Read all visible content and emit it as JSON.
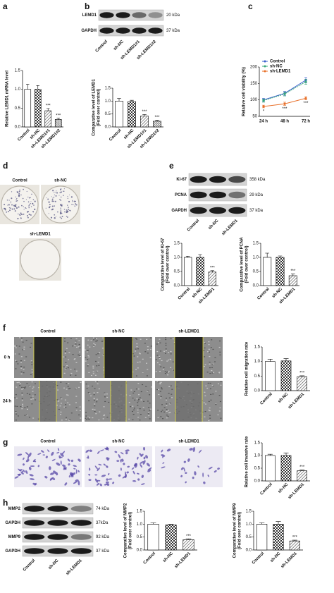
{
  "figure": {
    "panel_labels": [
      "a",
      "b",
      "c",
      "d",
      "e",
      "f",
      "g",
      "h"
    ],
    "blots": [
      {
        "lanes": [
          "Control",
          "sh-NC",
          "sh-LEMD1#1",
          "sh-LEMD1#2"
        ],
        "bands": [
          {
            "name": "LEMD1",
            "size": "20 kDa"
          },
          {
            "name": "GAPDH",
            "size": "37 kDa"
          }
        ]
      },
      {
        "lanes": [
          "Control",
          "sh-NC",
          "sh-LEMD1"
        ],
        "bands": [
          {
            "name": "Ki-67",
            "size": "358 kDa"
          },
          {
            "name": "PCNA",
            "size": "29 kDa"
          },
          {
            "name": "GAPDH",
            "size": "37 kDa"
          }
        ]
      },
      {
        "lanes": [
          "Control",
          "sh-NC",
          "sh-LEMD1"
        ],
        "bands": [
          {
            "name": "MMP2",
            "size": "74 kDa"
          },
          {
            "name": "GAPDH",
            "size": "37kDa"
          },
          {
            "name": "MMP9",
            "size": "92 kDa"
          },
          {
            "name": "GAPDH",
            "size": "37 kDa"
          }
        ]
      }
    ],
    "colony": {
      "labels": [
        "Control",
        "sh-NC",
        "sh-LEMD1"
      ]
    },
    "wound": {
      "columns": [
        "Control",
        "sh-NC",
        "sh-LEMD1"
      ],
      "rows": [
        "0 h",
        "24 h"
      ]
    },
    "invasion": {
      "labels": [
        "Control",
        "sh-NC",
        "sh-LEMD1"
      ]
    }
  },
  "chart_data": [
    {
      "type": "bar",
      "ylabel": "Relative LEMD1 mRNA level",
      "categories": [
        "Control",
        "sh-NC",
        "sh-LEMD1#1",
        "sh-LEMD1#2"
      ],
      "values": [
        1.0,
        1.0,
        0.43,
        0.2
      ],
      "errors": [
        0.13,
        0.1,
        0.06,
        0.03
      ],
      "significance": [
        null,
        null,
        "***",
        "***"
      ],
      "fills": [
        "white",
        "checker",
        "hatch",
        "dense"
      ],
      "ylim": [
        0,
        1.5
      ],
      "yticks": [
        {
          "value": 0,
          "label": "0.0"
        },
        0.5,
        {
          "value": 1,
          "label": "1.0"
        },
        1.5
      ]
    },
    {
      "type": "bar",
      "ylabel": "Comparative level of LEMD1",
      "ylabel2": "(Fold over control)",
      "categories": [
        "Control",
        "sh-NC",
        "sh-LEMD1#1",
        "sh-LEMD1#2"
      ],
      "values": [
        1.0,
        0.98,
        0.42,
        0.22
      ],
      "errors": [
        0.1,
        0.05,
        0.06,
        0.04
      ],
      "significance": [
        null,
        null,
        "***",
        "***"
      ],
      "fills": [
        "white",
        "checker",
        "hatch",
        "dense"
      ],
      "ylim": [
        0,
        1.5
      ],
      "yticks": [
        {
          "value": 0,
          "label": "0.0"
        },
        0.5,
        {
          "value": 1,
          "label": "1.0"
        },
        1.5
      ]
    },
    {
      "type": "line",
      "ylabel": "Relative cell viability (%)",
      "legend": "upper left",
      "categories": [
        "24 h",
        "48 h",
        "72 h"
      ],
      "series": [
        {
          "name": "Control",
          "color": "#3a5fcd",
          "values": [
            100,
            120,
            160
          ],
          "errors": [
            5,
            6,
            8
          ]
        },
        {
          "name": "sh-NC",
          "color": "#3aa87a",
          "values": [
            98,
            118,
            155
          ],
          "errors": [
            5,
            6,
            8
          ]
        },
        {
          "name": "sh-LEMD1",
          "color": "#e8702a",
          "values": [
            80,
            88,
            105
          ],
          "errors": [
            4,
            5,
            5
          ],
          "significance": [
            "*",
            "***",
            "***"
          ]
        }
      ],
      "ylim": [
        50,
        200
      ],
      "yticks": [
        50,
        100,
        150,
        200
      ]
    },
    {
      "type": "bar",
      "ylabel": "Comparative level of Ki-67",
      "ylabel2": "(Fold over control)",
      "categories": [
        "Control",
        "sh-NC",
        "sh-LEMD1"
      ],
      "values": [
        1.0,
        1.0,
        0.48
      ],
      "errors": [
        0.04,
        0.1,
        0.05
      ],
      "significance": [
        null,
        null,
        "***"
      ],
      "fills": [
        "white",
        "checker",
        "hatch"
      ],
      "ylim": [
        0,
        1.5
      ],
      "yticks": [
        {
          "value": 0,
          "label": "0.0"
        },
        0.5,
        {
          "value": 1,
          "label": "1.0"
        },
        1.5
      ]
    },
    {
      "type": "bar",
      "ylabel": "Comparative level of PCNA",
      "ylabel2": "(Fold over control)",
      "categories": [
        "Control",
        "sh-NC",
        "sh-LEMD1"
      ],
      "values": [
        1.0,
        1.0,
        0.35
      ],
      "errors": [
        0.15,
        0.05,
        0.06
      ],
      "significance": [
        null,
        null,
        "***"
      ],
      "fills": [
        "white",
        "checker",
        "hatch"
      ],
      "ylim": [
        0,
        1.5
      ],
      "yticks": [
        {
          "value": 0,
          "label": "0.0"
        },
        0.5,
        {
          "value": 1,
          "label": "1.0"
        },
        1.5
      ]
    },
    {
      "type": "bar",
      "ylabel": "Relative cell migration rate",
      "categories": [
        "Control",
        "sh-NC",
        "sh-LEMD1"
      ],
      "values": [
        1.0,
        1.02,
        0.48
      ],
      "errors": [
        0.08,
        0.08,
        0.03
      ],
      "significance": [
        null,
        null,
        "***"
      ],
      "fills": [
        "white",
        "checker",
        "hatch"
      ],
      "ylim": [
        0,
        1.5
      ],
      "yticks": [
        {
          "value": 0,
          "label": "0.0"
        },
        0.5,
        {
          "value": 1,
          "label": "1.0"
        },
        1.5
      ]
    },
    {
      "type": "bar",
      "ylabel": "Relative cell invasive rate",
      "categories": [
        "Control",
        "sh-NC",
        "sh-LEMD1"
      ],
      "values": [
        1.0,
        1.0,
        0.4
      ],
      "errors": [
        0.05,
        0.1,
        0.03
      ],
      "significance": [
        null,
        null,
        "***"
      ],
      "fills": [
        "white",
        "checker",
        "hatch"
      ],
      "ylim": [
        0,
        1.5
      ],
      "yticks": [
        {
          "value": 0,
          "label": "0.0"
        },
        0.5,
        {
          "value": 1,
          "label": "1.0"
        },
        1.5
      ]
    },
    {
      "type": "bar",
      "ylabel": "Comparative level of MMP2",
      "ylabel2": "(Fold over control)",
      "categories": [
        "Control",
        "sh-NC",
        "sh-LEMD1"
      ],
      "values": [
        1.0,
        0.97,
        0.4
      ],
      "errors": [
        0.05,
        0.02,
        0.03
      ],
      "significance": [
        null,
        null,
        "***"
      ],
      "fills": [
        "white",
        "checker",
        "hatch"
      ],
      "ylim": [
        0,
        1.5
      ],
      "yticks": [
        {
          "value": 0,
          "label": "0.0"
        },
        0.5,
        {
          "value": 1,
          "label": "1.0"
        },
        1.5
      ]
    },
    {
      "type": "bar",
      "ylabel": "Comparative level of MMP9",
      "ylabel2": "(Fold over control)",
      "categories": [
        "Control",
        "sh-NC",
        "sh-LEMD1"
      ],
      "values": [
        1.0,
        1.0,
        0.35
      ],
      "errors": [
        0.05,
        0.1,
        0.03
      ],
      "significance": [
        null,
        null,
        "***"
      ],
      "fills": [
        "white",
        "checker",
        "hatch"
      ],
      "ylim": [
        0,
        1.5
      ],
      "yticks": [
        {
          "value": 0,
          "label": "0.0"
        },
        0.5,
        {
          "value": 1,
          "label": "1.0"
        },
        1.5
      ]
    }
  ]
}
